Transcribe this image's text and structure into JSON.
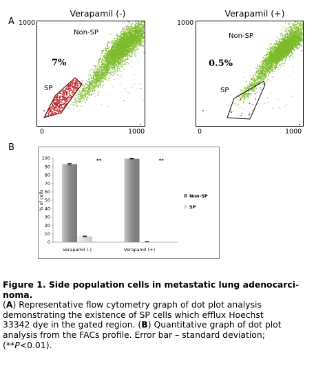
{
  "panel_a": {
    "letter": "A",
    "plots": [
      {
        "title": "Verapamil (-)",
        "y_max_label": "1000",
        "x_min_label": "0",
        "x_max_label": "1000",
        "nonsp_label": "Non-SP",
        "sp_label": "SP",
        "sp_percent": "7%"
      },
      {
        "title": "Verapamil (+)",
        "y_max_label": "1000",
        "x_min_label": "0",
        "x_max_label": "1000",
        "nonsp_label": "Non-SP",
        "sp_label": "SP",
        "sp_percent": "0.5%"
      }
    ],
    "colors": {
      "non_sp_dots": "#7dbb2c",
      "sp_dots": "#c0282d"
    }
  },
  "panel_b": {
    "letter": "B",
    "significance_mark": "**",
    "colors": {
      "non_sp_bar": "#8c8c8c",
      "sp_bar": "#dcdcdc"
    }
  },
  "chart_data": [
    {
      "type": "scatter",
      "title": "Verapamil (-)",
      "xlim": [
        0,
        1000
      ],
      "ylim": [
        0,
        1000
      ],
      "series": [
        {
          "name": "Non-SP"
        },
        {
          "name": "SP"
        }
      ],
      "gated_percent_sp": 7
    },
    {
      "type": "scatter",
      "title": "Verapamil (+)",
      "xlim": [
        0,
        1000
      ],
      "ylim": [
        0,
        1000
      ],
      "series": [
        {
          "name": "Non-SP"
        },
        {
          "name": "SP"
        }
      ],
      "gated_percent_sp": 0.5
    },
    {
      "type": "bar",
      "categories": [
        "Verapamil (-)",
        "Verapamil (+)"
      ],
      "series": [
        {
          "name": "Non-SP",
          "values": [
            93,
            99.5
          ],
          "errors": [
            1,
            0.3
          ]
        },
        {
          "name": "SP",
          "values": [
            7,
            0.5
          ],
          "errors": [
            0.4,
            0.2
          ]
        }
      ],
      "ylabel": "% of cells",
      "ylim": [
        0,
        100
      ],
      "yticks": [
        "0",
        "10",
        "20",
        "30",
        "40",
        "50",
        "60",
        "70",
        "80",
        "90",
        "100"
      ],
      "annotations": [
        "**",
        "**"
      ],
      "legend": "right"
    }
  ],
  "caption": {
    "title": "Figure 1. Side population cells in metastatic lung adenocarci-",
    "title_cont": "noma.",
    "line1_a": "A",
    "line1_b": ") Representative flow cytometry graph of dot plot analysis",
    "line2": "demonstrating the existence of SP cells which efflux Hoechst",
    "line3_a": "33342 dye in the gated region. (",
    "line3_b": "B",
    "line3_c": ") Quantitative graph of dot plot",
    "line4": "analysis from the FACs profile. Error bar – standard deviation;",
    "line5_a": "(**",
    "line5_b": "P",
    "line5_c": "<0.01)."
  }
}
